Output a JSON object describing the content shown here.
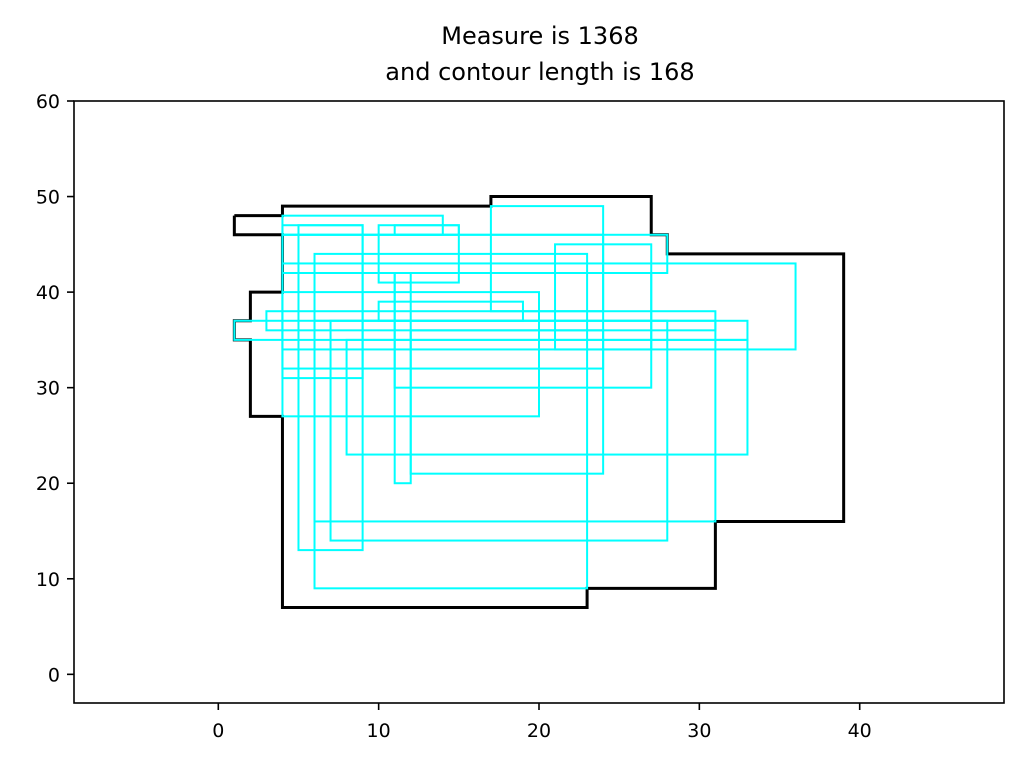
{
  "chart_data": {
    "type": "line",
    "title": [
      "Measure is 1368",
      "and contour length is 168"
    ],
    "xlabel": "",
    "ylabel": "",
    "xlim": [
      -9,
      49
    ],
    "ylim": [
      -3,
      60
    ],
    "xticks": [
      0,
      10,
      20,
      30,
      40
    ],
    "yticks": [
      0,
      10,
      20,
      30,
      40,
      50,
      60
    ],
    "grid": false,
    "colors": {
      "contour": "#000000",
      "rectangles": "#00ffff"
    },
    "contour": [
      [
        1,
        48
      ],
      [
        4,
        48
      ],
      [
        4,
        49
      ],
      [
        17,
        49
      ],
      [
        17,
        50
      ],
      [
        27,
        50
      ],
      [
        27,
        46
      ],
      [
        28,
        46
      ],
      [
        28,
        44
      ],
      [
        39,
        44
      ],
      [
        39,
        16
      ],
      [
        31,
        16
      ],
      [
        31,
        9
      ],
      [
        23,
        9
      ],
      [
        23,
        7
      ],
      [
        4,
        7
      ],
      [
        4,
        27
      ],
      [
        2,
        27
      ],
      [
        2,
        35
      ],
      [
        1,
        35
      ],
      [
        1,
        37
      ],
      [
        2,
        37
      ],
      [
        2,
        40
      ],
      [
        4,
        40
      ],
      [
        4,
        46
      ],
      [
        1,
        46
      ],
      [
        1,
        48
      ]
    ],
    "rectangles": [
      [
        4,
        46,
        14,
        48
      ],
      [
        4,
        31,
        9,
        47
      ],
      [
        5,
        13,
        9,
        47
      ],
      [
        11,
        46,
        15,
        47
      ],
      [
        10,
        41,
        15,
        47
      ],
      [
        17,
        38,
        24,
        49
      ],
      [
        4,
        32,
        24,
        46
      ],
      [
        21,
        34,
        27,
        45
      ],
      [
        4,
        42,
        28,
        46
      ],
      [
        6,
        9,
        23,
        44
      ],
      [
        4,
        43,
        36,
        43
      ],
      [
        4,
        34,
        36,
        43
      ],
      [
        11,
        20,
        12,
        42
      ],
      [
        11,
        30,
        27,
        42
      ],
      [
        4,
        27,
        20,
        40
      ],
      [
        10,
        37,
        19,
        39
      ],
      [
        3,
        36,
        31,
        38
      ],
      [
        7,
        14,
        28,
        37
      ],
      [
        1,
        35,
        33,
        37
      ],
      [
        6,
        16,
        31,
        37
      ],
      [
        12,
        21,
        24,
        36
      ],
      [
        8,
        23,
        33,
        35
      ]
    ]
  }
}
